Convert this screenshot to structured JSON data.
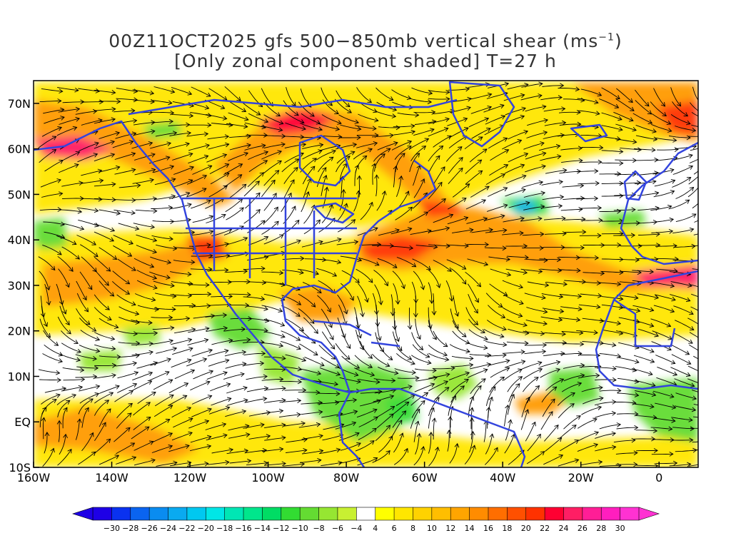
{
  "title": {
    "line1_prefix": "00Z11OCT2025 gfs 500−850mb vertical shear (ms",
    "line1_sup": "−1",
    "line1_suffix": ")",
    "line2": "[Only zonal component shaded] T=27 h"
  },
  "map": {
    "lon_range": [
      -160,
      10
    ],
    "lat_range": [
      -10,
      75
    ],
    "x_ticks": [
      {
        "value": -160,
        "label": "160W"
      },
      {
        "value": -140,
        "label": "140W"
      },
      {
        "value": -120,
        "label": "120W"
      },
      {
        "value": -100,
        "label": "100W"
      },
      {
        "value": -80,
        "label": "80W"
      },
      {
        "value": -60,
        "label": "60W"
      },
      {
        "value": -40,
        "label": "40W"
      },
      {
        "value": -20,
        "label": "20W"
      },
      {
        "value": 0,
        "label": "0"
      }
    ],
    "y_ticks": [
      {
        "value": 70,
        "label": "70N"
      },
      {
        "value": 60,
        "label": "60N"
      },
      {
        "value": 50,
        "label": "50N"
      },
      {
        "value": 40,
        "label": "40N"
      },
      {
        "value": 30,
        "label": "30N"
      },
      {
        "value": 20,
        "label": "20N"
      },
      {
        "value": 10,
        "label": "10N"
      },
      {
        "value": 0,
        "label": "EQ"
      },
      {
        "value": -10,
        "label": "10S"
      }
    ],
    "coastline_color": "#3344dd",
    "streamline_color": "#000000"
  },
  "colorbar": {
    "labels": [
      "−30",
      "−28",
      "−26",
      "−24",
      "−22",
      "−20",
      "−18",
      "−16",
      "−14",
      "−12",
      "−10",
      "−8",
      "−6",
      "−4",
      "4",
      "6",
      "8",
      "10",
      "12",
      "14",
      "16",
      "18",
      "20",
      "22",
      "24",
      "26",
      "28",
      "30"
    ],
    "colors": [
      "#1e00e6",
      "#0a32f0",
      "#0a64f0",
      "#0a8cf0",
      "#0aaaf0",
      "#00c8f0",
      "#00e6e6",
      "#00e6b4",
      "#00e68c",
      "#00dc64",
      "#32dc32",
      "#64dc32",
      "#96e632",
      "#c8f032",
      "#ffffff",
      "#ffff00",
      "#ffe600",
      "#ffd200",
      "#ffbe00",
      "#ffa500",
      "#ff8c00",
      "#ff6e00",
      "#ff5000",
      "#ff3200",
      "#ff0032",
      "#ff1e64",
      "#ff1e96",
      "#ff1ebe",
      "#ff32d2"
    ]
  }
}
